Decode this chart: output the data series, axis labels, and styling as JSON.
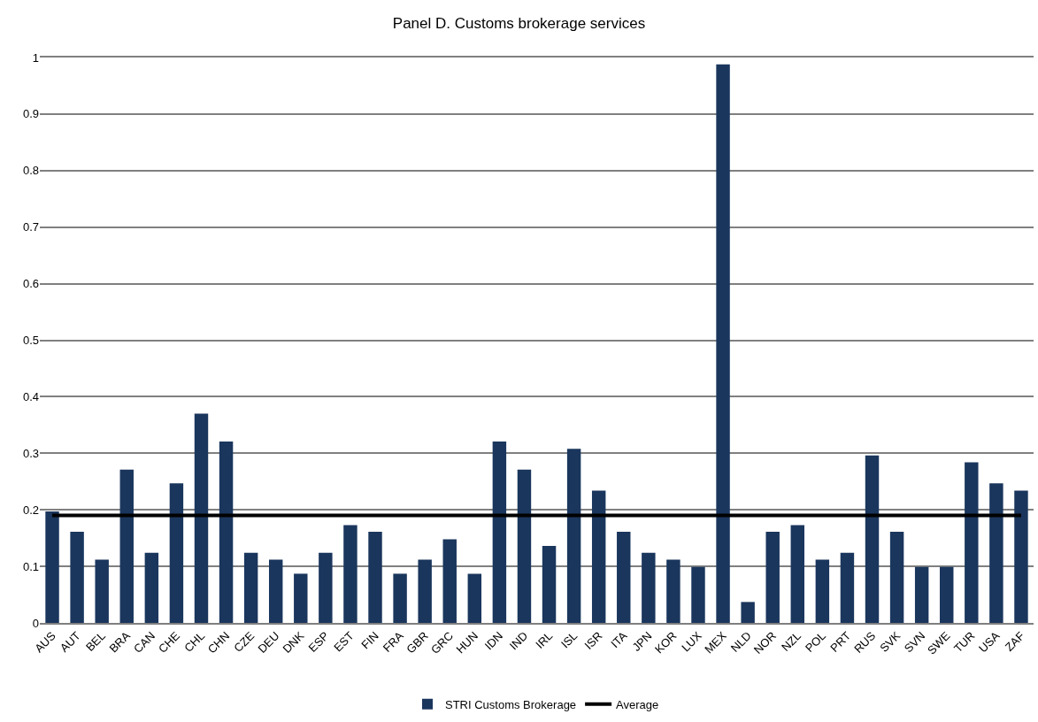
{
  "chart_data": {
    "type": "bar",
    "title": "Panel D. Customs brokerage services",
    "categories": [
      "AUS",
      "AUT",
      "BEL",
      "BRA",
      "CAN",
      "CHE",
      "CHL",
      "CHN",
      "CZE",
      "DEU",
      "DNK",
      "ESP",
      "EST",
      "FIN",
      "FRA",
      "GBR",
      "GRC",
      "HUN",
      "IDN",
      "IND",
      "IRL",
      "ISL",
      "ISR",
      "ITA",
      "JPN",
      "KOR",
      "LUX",
      "MEX",
      "NLD",
      "NOR",
      "NZL",
      "POL",
      "PRT",
      "RUS",
      "SVK",
      "SVN",
      "SWE",
      "TUR",
      "USA",
      "ZAF"
    ],
    "series": [
      {
        "name": "STRI Customs Brokerage",
        "color": "#1a365d",
        "values": [
          0.197,
          0.161,
          0.112,
          0.271,
          0.124,
          0.247,
          0.37,
          0.321,
          0.124,
          0.112,
          0.087,
          0.124,
          0.173,
          0.161,
          0.087,
          0.112,
          0.148,
          0.087,
          0.321,
          0.271,
          0.136,
          0.308,
          0.234,
          0.161,
          0.124,
          0.112,
          0.099,
          0.988,
          0.037,
          0.161,
          0.173,
          0.112,
          0.124,
          0.296,
          0.161,
          0.099,
          0.099,
          0.284,
          0.247,
          0.234
        ]
      },
      {
        "name": "Average",
        "type": "line",
        "color": "#000000",
        "values": [
          0.19,
          0.19,
          0.19,
          0.19,
          0.19,
          0.19,
          0.19,
          0.19,
          0.19,
          0.19,
          0.19,
          0.19,
          0.19,
          0.19,
          0.19,
          0.19,
          0.19,
          0.19,
          0.19,
          0.19,
          0.19,
          0.19,
          0.19,
          0.19,
          0.19,
          0.19,
          0.19,
          0.19,
          0.19,
          0.19,
          0.19,
          0.19,
          0.19,
          0.19,
          0.19,
          0.19,
          0.19,
          0.19,
          0.19,
          0.19
        ]
      }
    ],
    "ylim": [
      0,
      1
    ],
    "yticks": [
      0,
      0.1,
      0.2,
      0.3,
      0.4,
      0.5,
      0.6,
      0.7,
      0.8,
      0.9,
      1
    ],
    "grid": "y",
    "legend": "bottom",
    "marker": "none"
  }
}
